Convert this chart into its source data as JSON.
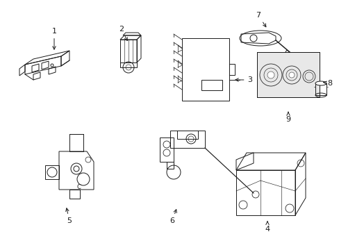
{
  "background_color": "#ffffff",
  "line_color": "#1a1a1a",
  "figsize": [
    4.89,
    3.6
  ],
  "dpi": 100,
  "lw": 0.7
}
